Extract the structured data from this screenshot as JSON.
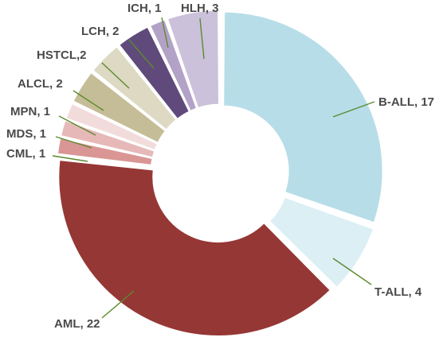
{
  "chart_data": {
    "type": "pie",
    "donut": true,
    "slices": [
      {
        "label": "B-ALL, 17",
        "name": "B-ALL",
        "value": 17,
        "color": "#b7dde8"
      },
      {
        "label": "T-ALL, 4",
        "name": "T-ALL",
        "value": 4,
        "color": "#dbeff5"
      },
      {
        "label": "AML, 22",
        "name": "AML",
        "value": 22,
        "color": "#953735"
      },
      {
        "label": "CML, 1",
        "name": "CML",
        "value": 1,
        "color": "#d99694"
      },
      {
        "label": "MDS, 1",
        "name": "MDS",
        "value": 1,
        "color": "#e6b9b8"
      },
      {
        "label": "MPN, 1",
        "name": "MPN",
        "value": 1,
        "color": "#f2dcdb"
      },
      {
        "label": "ALCL, 2",
        "name": "ALCL",
        "value": 2,
        "color": "#c4bd97"
      },
      {
        "label": "HSTCL,2",
        "name": "HSTCL",
        "value": 2,
        "color": "#ddd9c3"
      },
      {
        "label": "LCH, 2",
        "name": "LCH",
        "value": 2,
        "color": "#604a7b"
      },
      {
        "label": "ICH, 1",
        "name": "ICH",
        "value": 1,
        "color": "#b3a2c7"
      },
      {
        "label": "HLH, 3",
        "name": "HLH",
        "value": 3,
        "color": "#ccc1da"
      }
    ],
    "leader_color": "#5b8a2e",
    "label_color": "#4a4a4a"
  }
}
